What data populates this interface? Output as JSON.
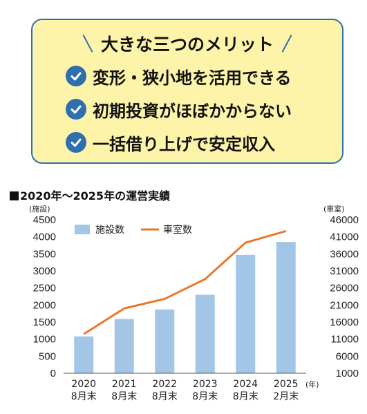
{
  "merits": {
    "title": "大きな三つのメリット",
    "items": [
      {
        "text": "変形・狭小地を活用できる"
      },
      {
        "text": "初期投資がほぼかからない"
      },
      {
        "text": "一括借り上げで安定収入"
      }
    ]
  },
  "chart_data": {
    "type": "bar+line",
    "title": "2020年〜2025年の運営実績",
    "categories": [
      "2020",
      "2021",
      "2022",
      "2023",
      "2024",
      "2025"
    ],
    "category_sublabels": [
      "8月末",
      "8月末",
      "8月末",
      "8月末",
      "8月末",
      "2月末"
    ],
    "x_unit": "(年)",
    "left_axis": {
      "unit": "(施設)",
      "ylim": [
        0,
        4500
      ],
      "ticks": [
        0,
        500,
        1000,
        1500,
        2000,
        2500,
        3000,
        3500,
        4000,
        4500
      ]
    },
    "right_axis": {
      "unit": "(車室)",
      "ylim": [
        1000,
        46000
      ],
      "ticks": [
        1000,
        6000,
        11000,
        16000,
        21000,
        26000,
        31000,
        36000,
        41000,
        46000
      ]
    },
    "series": [
      {
        "name": "施設数",
        "type": "bar",
        "axis": "left",
        "values": [
          1080,
          1590,
          1870,
          2300,
          3470,
          3850
        ],
        "color": "#a3c6e6"
      },
      {
        "name": "車室数",
        "type": "line",
        "axis": "right",
        "values": [
          12500,
          20000,
          22800,
          28600,
          39300,
          42700
        ],
        "color": "#e8772b"
      }
    ],
    "legend": "top-left",
    "grid": false
  }
}
